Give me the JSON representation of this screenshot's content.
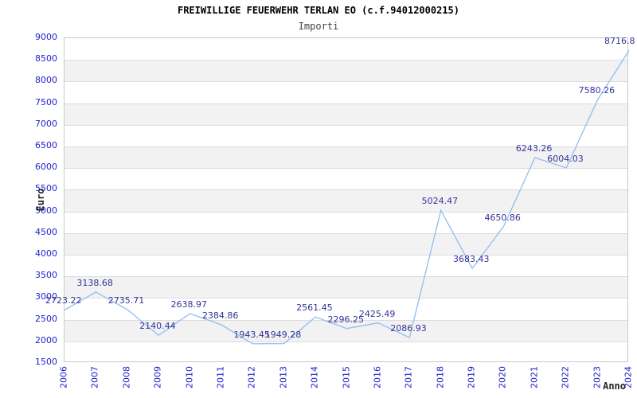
{
  "page": {
    "title": "FREIWILLIGE FEUERWEHR TERLAN EO (c.f.94012000215)",
    "subtitle": "Importi"
  },
  "chart_data": {
    "type": "line",
    "title": "FREIWILLIGE FEUERWEHR TERLAN EO (c.f.94012000215)",
    "subtitle": "Importi",
    "xlabel": "Anno",
    "ylabel": "Euro",
    "categories": [
      "2006",
      "2007",
      "2008",
      "2009",
      "2010",
      "2011",
      "2012",
      "2013",
      "2014",
      "2015",
      "2016",
      "2017",
      "2018",
      "2019",
      "2020",
      "2021",
      "2022",
      "2023",
      "2024"
    ],
    "values": [
      2723.22,
      3138.68,
      2735.71,
      2140.44,
      2638.97,
      2384.86,
      1943.45,
      1949.28,
      2561.45,
      2296.25,
      2425.49,
      2086.93,
      5024.47,
      3683.43,
      4650.86,
      6243.26,
      6004.03,
      7580.26,
      8716.8
    ],
    "point_labels": [
      "2723.22",
      "3138.68",
      "2735.71",
      "2140.44",
      "2638.97",
      "2384.86",
      "1943.45",
      "1949.28",
      "2561.45",
      "2296.25",
      "2425.49",
      "2086.93",
      "5024.47",
      "3683.43",
      "4650.86",
      "6243.26",
      "6004.03",
      "7580.26",
      "8716.8"
    ],
    "ylim": [
      1500,
      9000
    ],
    "ytick_step": 500,
    "ytick_labels": [
      "9000",
      "8500",
      "8000",
      "7500",
      "7000",
      "6500",
      "6000",
      "5500",
      "5000",
      "4500",
      "4000",
      "3500",
      "3000",
      "2500",
      "2000",
      "1500"
    ],
    "grid": "horizontal-bands-alternating",
    "legend": "none",
    "colors": {
      "line": "#8fbdf0",
      "tick_label": "#2222cc",
      "point_label": "#333399",
      "band_fill": "#f2f2f2",
      "gridline": "#dcdcdc",
      "plot_border": "#c9c9c9",
      "axis_title": "#222222",
      "title": "#000000",
      "subtitle": "#444444"
    }
  }
}
